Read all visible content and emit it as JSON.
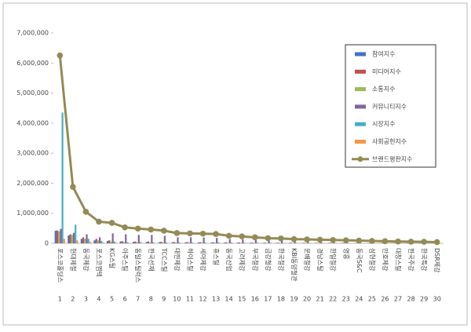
{
  "chart_data": {
    "type": "bar_line",
    "categories": [
      "포스코홀딩스",
      "현대제철",
      "동국제강",
      "포스코엠텍",
      "KG스틸",
      "아주스틸",
      "동일스틸럭스",
      "한국선재",
      "TCC스틸",
      "대한제강",
      "하이스틸",
      "세아제강",
      "휴스틸",
      "동국산업",
      "고려제강",
      "부국철강",
      "금강철강",
      "한국철강",
      "KBI동양철관",
      "문배철강",
      "경남스틸",
      "한일철강",
      "영흥",
      "동국S&C",
      "삼현철강",
      "만호제강",
      "대창스틸",
      "한국주강",
      "한국특강",
      "DSR제강"
    ],
    "ranks": [
      1,
      2,
      3,
      4,
      5,
      6,
      7,
      8,
      9,
      10,
      11,
      12,
      13,
      14,
      15,
      16,
      17,
      18,
      19,
      20,
      21,
      22,
      23,
      24,
      25,
      26,
      27,
      28,
      29,
      30
    ],
    "ylim": [
      0,
      7000000
    ],
    "yticks": [
      0,
      {
        "value": 1000000,
        "label": "1,000,000"
      },
      {
        "value": 2000000,
        "label": "2,000,000"
      },
      {
        "value": 3000000,
        "label": "3,000,000"
      },
      {
        "value": 4000000,
        "label": "4,000,000"
      },
      {
        "value": 5000000,
        "label": "5,000,000"
      },
      {
        "value": 6000000,
        "label": "6,000,000"
      },
      {
        "value": 7000000,
        "label": "7,000,000"
      }
    ],
    "grid": false,
    "legend": "top-right",
    "series": [
      {
        "name": "참여지수",
        "type": "bar",
        "color": "#4472c4",
        "values": [
          420000,
          260000,
          150000,
          100000,
          80000,
          60000,
          50000,
          45000,
          40000,
          35000,
          30000,
          30000,
          28000,
          25000,
          22000,
          20000,
          18000,
          16000,
          15000,
          14000,
          13000,
          12000,
          11000,
          10000,
          9000,
          8000,
          7000,
          6000,
          5000,
          4000
        ]
      },
      {
        "name": "미디어지수",
        "type": "bar",
        "color": "#c0504d",
        "values": [
          430000,
          300000,
          200000,
          150000,
          100000,
          70000,
          60000,
          60000,
          50000,
          40000,
          40000,
          38000,
          35000,
          30000,
          28000,
          25000,
          22000,
          20000,
          18000,
          17000,
          16000,
          15000,
          14000,
          12000,
          11000,
          10000,
          9000,
          8000,
          7000,
          6000
        ]
      },
      {
        "name": "소통지수",
        "type": "bar",
        "color": "#9bbb59",
        "values": [
          400000,
          280000,
          150000,
          100000,
          60000,
          40000,
          35000,
          30000,
          28000,
          25000,
          22000,
          20000,
          18000,
          15000,
          14000,
          12000,
          11000,
          10000,
          9000,
          8000,
          7000,
          6000,
          6000,
          5000,
          5000,
          4000,
          4000,
          3000,
          3000,
          2000
        ]
      },
      {
        "name": "커뮤니티지수",
        "type": "bar",
        "color": "#8064a2",
        "values": [
          480000,
          350000,
          300000,
          200000,
          330000,
          300000,
          280000,
          280000,
          250000,
          200000,
          200000,
          190000,
          180000,
          140000,
          130000,
          110000,
          90000,
          90000,
          75000,
          70000,
          65000,
          60000,
          55000,
          50000,
          45000,
          40000,
          35000,
          30000,
          30000,
          22000
        ]
      },
      {
        "name": "시장지수",
        "type": "bar",
        "color": "#4bacc6",
        "values": [
          4350000,
          620000,
          150000,
          80000,
          60000,
          40000,
          40000,
          30000,
          30000,
          25000,
          25000,
          25000,
          30000,
          25000,
          20000,
          20000,
          20000,
          15000,
          15000,
          13000,
          12000,
          10000,
          9000,
          8000,
          7000,
          6000,
          5000,
          5000,
          4000,
          3000
        ]
      },
      {
        "name": "사회공헌지수",
        "type": "bar",
        "color": "#f79646",
        "values": [
          150000,
          100000,
          50000,
          30000,
          20000,
          15000,
          12000,
          10000,
          10000,
          8000,
          8000,
          8000,
          7000,
          6000,
          5000,
          5000,
          4000,
          4000,
          3000,
          3000,
          3000,
          2000,
          2000,
          2000,
          2000,
          1000,
          1000,
          1000,
          1000,
          1000
        ]
      },
      {
        "name": "브랜드평판지수",
        "type": "line",
        "color": "#948a54",
        "values": [
          6250000,
          1880000,
          1050000,
          720000,
          680000,
          530000,
          490000,
          460000,
          420000,
          340000,
          330000,
          320000,
          310000,
          250000,
          230000,
          200000,
          170000,
          160000,
          140000,
          130000,
          120000,
          110000,
          100000,
          90000,
          80000,
          70000,
          60000,
          55000,
          50000,
          40000
        ]
      }
    ]
  }
}
